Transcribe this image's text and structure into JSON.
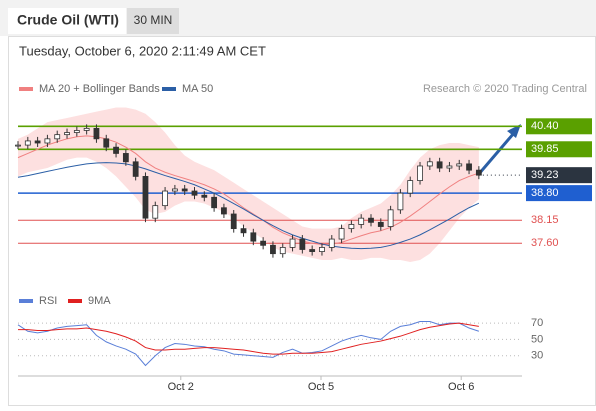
{
  "chart_data": {
    "type": "candlestick",
    "title": "Crude Oil (WTI)",
    "timeframe": "30 MIN",
    "subtitle": "Tuesday, October 6, 2020 2:11:49 AM CET",
    "credit": "Research © 2020 Trading Central",
    "close": [
      39.95,
      40.05,
      40.0,
      40.1,
      40.2,
      40.25,
      40.3,
      40.35,
      40.1,
      39.9,
      39.75,
      39.55,
      39.2,
      38.2,
      38.5,
      38.85,
      38.9,
      38.85,
      38.75,
      38.7,
      38.45,
      38.3,
      37.95,
      37.85,
      37.65,
      37.55,
      37.35,
      37.5,
      37.7,
      37.45,
      37.4,
      37.5,
      37.7,
      37.95,
      38.05,
      38.2,
      38.1,
      38.0,
      38.4,
      38.8,
      39.1,
      39.45,
      39.55,
      39.4,
      39.45,
      39.5,
      39.35,
      39.23
    ],
    "candle_color": "#333333",
    "series": [
      {
        "name": "MA 20 + Bollinger Bands",
        "color": "#f08080",
        "band_color": "#fde0e0",
        "values": [
          39.65,
          39.75,
          39.85,
          39.95,
          40.03,
          40.1,
          40.15,
          40.17,
          40.15,
          40.1,
          40.02,
          39.9,
          39.75,
          39.55,
          39.4,
          39.3,
          39.22,
          39.15,
          39.08,
          39.0,
          38.9,
          38.78,
          38.62,
          38.45,
          38.3,
          38.15,
          37.98,
          37.85,
          37.75,
          37.65,
          37.6,
          37.57,
          37.58,
          37.62,
          37.7,
          37.78,
          37.85,
          37.9,
          37.98,
          38.1,
          38.25,
          38.42,
          38.6,
          38.78,
          38.95,
          39.1,
          39.2,
          39.28
        ],
        "upper": [
          40.1,
          40.2,
          40.35,
          40.5,
          40.55,
          40.6,
          40.65,
          40.7,
          40.75,
          40.8,
          40.85,
          40.85,
          40.8,
          40.7,
          40.5,
          40.25,
          39.95,
          39.7,
          39.55,
          39.45,
          39.35,
          39.2,
          39.05,
          38.9,
          38.75,
          38.6,
          38.45,
          38.3,
          38.15,
          38.0,
          37.95,
          37.95,
          37.95,
          38.0,
          38.2,
          38.35,
          38.45,
          38.55,
          38.75,
          39.0,
          39.35,
          39.65,
          39.85,
          39.95,
          40.0,
          40.0,
          39.95,
          39.9
        ],
        "lower": [
          39.2,
          39.3,
          39.35,
          39.4,
          39.5,
          39.6,
          39.65,
          39.65,
          39.55,
          39.4,
          39.2,
          38.95,
          38.7,
          38.4,
          38.3,
          38.35,
          38.5,
          38.6,
          38.6,
          38.55,
          38.45,
          38.35,
          38.2,
          38.0,
          37.85,
          37.7,
          37.5,
          37.4,
          37.35,
          37.3,
          37.25,
          37.2,
          37.2,
          37.25,
          37.2,
          37.2,
          37.25,
          37.25,
          37.2,
          37.2,
          37.15,
          37.2,
          37.35,
          37.6,
          37.9,
          38.2,
          38.45,
          38.65
        ]
      },
      {
        "name": "MA 50",
        "color": "#2b5fa6",
        "values": [
          39.18,
          39.22,
          39.27,
          39.32,
          39.37,
          39.42,
          39.46,
          39.5,
          39.52,
          39.53,
          39.52,
          39.5,
          39.45,
          39.38,
          39.3,
          39.22,
          39.15,
          39.08,
          39.0,
          38.9,
          38.8,
          38.68,
          38.55,
          38.42,
          38.28,
          38.15,
          38.02,
          37.9,
          37.8,
          37.72,
          37.65,
          37.58,
          37.53,
          37.5,
          37.48,
          37.47,
          37.48,
          37.5,
          37.55,
          37.62,
          37.7,
          37.8,
          37.92,
          38.05,
          38.18,
          38.32,
          38.45,
          38.56
        ]
      }
    ],
    "levels": [
      {
        "value": 40.4,
        "label": "40.40",
        "color": "#5aa000",
        "box": true
      },
      {
        "value": 39.85,
        "label": "39.85",
        "color": "#5aa000",
        "box": true
      },
      {
        "value": 39.23,
        "label": "39.23",
        "color": "#2b3440",
        "box": true,
        "dotted": true
      },
      {
        "value": 38.8,
        "label": "38.80",
        "color": "#1f5fd0",
        "box": true
      },
      {
        "value": 38.15,
        "label": "38.15",
        "color": "#e05050",
        "box": false
      },
      {
        "value": 37.6,
        "label": "37.60",
        "color": "#e05050",
        "box": false
      }
    ],
    "ylim": [
      36.6,
      41.7
    ],
    "xlim": [
      0,
      51.4
    ],
    "xticks": [
      {
        "value": 16.6,
        "label": "Oct 2"
      },
      {
        "value": 30.9,
        "label": "Oct 5"
      },
      {
        "value": 45.2,
        "label": "Oct 6"
      }
    ],
    "rsi": {
      "ylim": [
        10,
        80
      ],
      "yticks": [
        70,
        50,
        30
      ],
      "series": [
        {
          "name": "RSI",
          "color": "#5a7fd8",
          "values": [
            68,
            60,
            58,
            60,
            64,
            66,
            67,
            68,
            55,
            47,
            42,
            38,
            32,
            18,
            30,
            40,
            45,
            44,
            42,
            41,
            38,
            36,
            32,
            31,
            30,
            29,
            28,
            34,
            38,
            33,
            34,
            36,
            42,
            48,
            52,
            55,
            52,
            50,
            60,
            66,
            68,
            72,
            72,
            68,
            70,
            70,
            64,
            60
          ]
        },
        {
          "name": "9MA",
          "color": "#e02020",
          "values": [
            62,
            62,
            61,
            61,
            62,
            63,
            63,
            64,
            62,
            60,
            57,
            53,
            48,
            40,
            37,
            37,
            38,
            38,
            39,
            40,
            40,
            39,
            38,
            37,
            35,
            33,
            32,
            32,
            33,
            33,
            33,
            34,
            35,
            38,
            41,
            44,
            46,
            48,
            51,
            54,
            58,
            62,
            65,
            67,
            69,
            70,
            68,
            66
          ]
        }
      ]
    }
  }
}
